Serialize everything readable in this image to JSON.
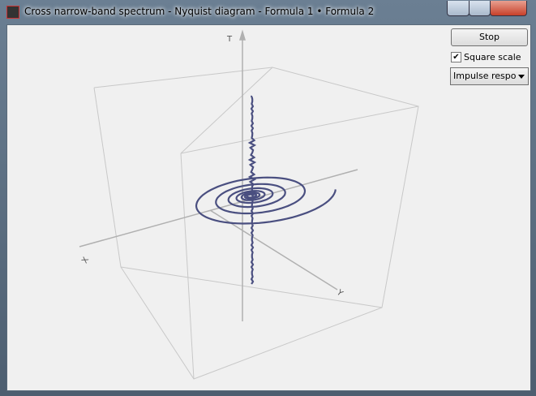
{
  "window": {
    "title": "Cross narrow-band spectrum - Nyquist diagram - Formula 1 • Formula 2"
  },
  "controls": {
    "stop_button": "Stop",
    "square_scale": {
      "label": "Square scale",
      "checked": true
    },
    "mode_dropdown": "Impulse respons"
  },
  "plot": {
    "axis_labels": {
      "t": "T",
      "x": "X",
      "y": "Y"
    }
  }
}
